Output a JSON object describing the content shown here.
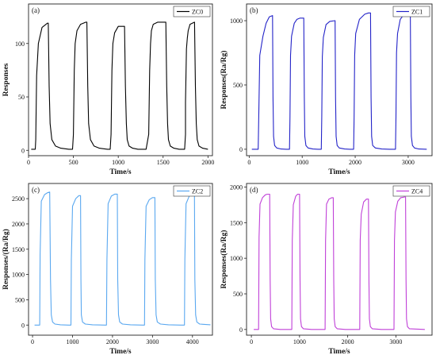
{
  "chart_data": [
    {
      "type": "line",
      "panel_label": "(a)",
      "xlabel": "Time/s",
      "ylabel": "Responses",
      "xlim": [
        0,
        2050
      ],
      "ylim": [
        -5,
        137
      ],
      "xticks": [
        0,
        500,
        1000,
        1500,
        2000
      ],
      "yticks": [
        0,
        50,
        100
      ],
      "legend_placement": "top-right",
      "series": [
        {
          "name": "ZC0",
          "color": "#000000",
          "x": [
            30,
            75,
            80,
            90,
            110,
            150,
            210,
            220,
            230,
            240,
            260,
            300,
            360,
            450,
            490,
            500,
            510,
            520,
            540,
            580,
            640,
            650,
            660,
            670,
            690,
            730,
            790,
            880,
            910,
            920,
            930,
            940,
            960,
            1000,
            1070,
            1080,
            1090,
            1100,
            1120,
            1160,
            1220,
            1310,
            1340,
            1350,
            1360,
            1370,
            1390,
            1440,
            1530,
            1540,
            1550,
            1560,
            1580,
            1620,
            1680,
            1740,
            1750,
            1750,
            1760,
            1770,
            1780,
            1800,
            1850,
            1860,
            1870,
            1880,
            1900,
            1940,
            2000
          ],
          "y": [
            1,
            1,
            10,
            70,
            100,
            115,
            119,
            119,
            60,
            25,
            10,
            4,
            2,
            1,
            1,
            15,
            75,
            100,
            112,
            118,
            120,
            120,
            60,
            25,
            10,
            4,
            2,
            1,
            1,
            15,
            75,
            100,
            110,
            116,
            116,
            60,
            25,
            10,
            4,
            2,
            1,
            1,
            15,
            75,
            100,
            112,
            118,
            120,
            120,
            60,
            25,
            10,
            4,
            2,
            1,
            1,
            15,
            45,
            95,
            105,
            112,
            118,
            120,
            60,
            25,
            10,
            4,
            2,
            1
          ]
        }
      ]
    },
    {
      "type": "line",
      "panel_label": "(b)",
      "xlabel": "Time/s",
      "ylabel": "Responses(Ra/Rg)",
      "xlim": [
        -50,
        3450
      ],
      "ylim": [
        -50,
        1130
      ],
      "xticks": [
        0,
        1000,
        2000,
        3000
      ],
      "yticks": [
        0,
        500,
        1000
      ],
      "legend_placement": "top-right",
      "series": [
        {
          "name": "ZC1",
          "color": "#2323c8",
          "x": [
            50,
            170,
            180,
            200,
            260,
            320,
            380,
            440,
            450,
            460,
            480,
            520,
            600,
            700,
            760,
            770,
            780,
            800,
            850,
            900,
            960,
            1030,
            1040,
            1050,
            1070,
            1110,
            1200,
            1300,
            1360,
            1370,
            1380,
            1400,
            1450,
            1520,
            1620,
            1630,
            1640,
            1660,
            1700,
            1800,
            1900,
            1970,
            1980,
            1990,
            2010,
            2080,
            2180,
            2250,
            2290,
            2300,
            2310,
            2330,
            2380,
            2500,
            2650,
            2760,
            2770,
            2780,
            2800,
            2850,
            2940,
            3040,
            3050,
            3060,
            3080,
            3120,
            3200,
            3350
          ],
          "y": [
            0,
            0,
            250,
            730,
            880,
            980,
            1030,
            1040,
            400,
            100,
            30,
            10,
            2,
            0,
            0,
            250,
            730,
            880,
            980,
            1010,
            1020,
            1020,
            400,
            100,
            30,
            10,
            2,
            0,
            0,
            250,
            720,
            870,
            970,
            995,
            1000,
            400,
            100,
            30,
            10,
            2,
            0,
            0,
            250,
            730,
            900,
            1010,
            1050,
            1060,
            1060,
            400,
            100,
            30,
            10,
            2,
            0,
            0,
            250,
            750,
            900,
            1010,
            1060,
            1065,
            400,
            100,
            30,
            10,
            2,
            0
          ]
        }
      ]
    },
    {
      "type": "line",
      "panel_label": "(c)",
      "xlabel": "Time/s",
      "ylabel": "Responses/(Ra/Rg)",
      "xlim": [
        -100,
        4500
      ],
      "ylim": [
        -200,
        2800
      ],
      "xticks": [
        0,
        1000,
        2000,
        3000,
        4000
      ],
      "yticks": [
        0,
        500,
        1000,
        1500,
        2000,
        2500
      ],
      "legend_placement": "top-right",
      "series": [
        {
          "name": "ZC2",
          "color": "#5aa8f0",
          "x": [
            50,
            180,
            190,
            220,
            300,
            380,
            430,
            450,
            470,
            500,
            560,
            700,
            900,
            960,
            970,
            1000,
            1080,
            1160,
            1200,
            1210,
            1220,
            1250,
            1320,
            1500,
            1800,
            1850,
            1860,
            1890,
            1970,
            2060,
            2120,
            2130,
            2150,
            2180,
            2250,
            2450,
            2750,
            2800,
            2810,
            2840,
            2920,
            3000,
            3060,
            3070,
            3090,
            3120,
            3200,
            3400,
            3700,
            3800,
            3810,
            3840,
            3920,
            4000,
            4050,
            4060,
            4080,
            4110,
            4180,
            4450
          ],
          "y": [
            0,
            0,
            1400,
            2450,
            2580,
            2620,
            2630,
            900,
            200,
            60,
            20,
            5,
            0,
            0,
            1300,
            2350,
            2500,
            2560,
            2560,
            900,
            200,
            60,
            20,
            5,
            0,
            0,
            1300,
            2400,
            2550,
            2590,
            2590,
            900,
            200,
            60,
            20,
            5,
            0,
            0,
            1300,
            2350,
            2480,
            2520,
            2520,
            900,
            200,
            60,
            20,
            5,
            0,
            0,
            1300,
            2400,
            2550,
            2590,
            2580,
            900,
            200,
            60,
            20,
            5
          ]
        }
      ]
    },
    {
      "type": "line",
      "panel_label": "(d)",
      "xlabel": "Time/s",
      "ylabel": "Responses(Ra/Rg)",
      "xlim": [
        -100,
        3750
      ],
      "ylim": [
        -80,
        2050
      ],
      "xticks": [
        0,
        1000,
        2000,
        3000
      ],
      "yticks": [
        0,
        500,
        1000,
        1500,
        2000
      ],
      "legend_placement": "top-right",
      "series": [
        {
          "name": "ZC4",
          "color": "#c040d8",
          "x": [
            50,
            150,
            160,
            180,
            230,
            290,
            330,
            380,
            390,
            400,
            420,
            460,
            600,
            800,
            840,
            850,
            870,
            920,
            960,
            1000,
            1010,
            1020,
            1040,
            1080,
            1250,
            1500,
            1530,
            1540,
            1560,
            1610,
            1670,
            1700,
            1710,
            1720,
            1740,
            1780,
            1950,
            2200,
            2250,
            2260,
            2280,
            2330,
            2390,
            2430,
            2440,
            2450,
            2470,
            2510,
            2700,
            2930,
            2960,
            2970,
            2990,
            3040,
            3100,
            3180,
            3200,
            3210,
            3220,
            3240,
            3280,
            3600
          ],
          "y": [
            0,
            0,
            1300,
            1760,
            1850,
            1890,
            1900,
            1900,
            700,
            150,
            40,
            10,
            0,
            0,
            0,
            1250,
            1750,
            1870,
            1900,
            1900,
            700,
            150,
            40,
            10,
            0,
            0,
            0,
            1250,
            1760,
            1830,
            1850,
            1850,
            700,
            150,
            40,
            10,
            0,
            0,
            0,
            1250,
            1620,
            1790,
            1830,
            1830,
            700,
            150,
            40,
            10,
            0,
            0,
            0,
            1250,
            1650,
            1800,
            1850,
            1860,
            1860,
            700,
            150,
            40,
            10,
            0
          ]
        }
      ]
    }
  ]
}
